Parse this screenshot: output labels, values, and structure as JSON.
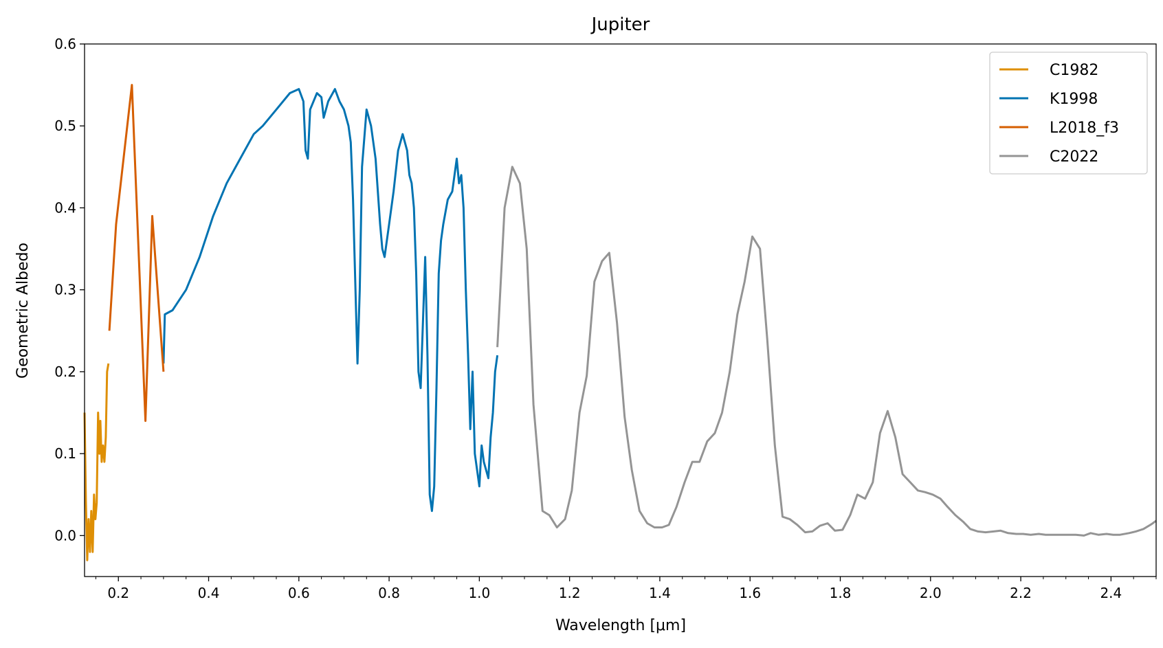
{
  "chart_data": {
    "type": "line",
    "title": "Jupiter",
    "xlabel": "Wavelength [μm]",
    "ylabel": "Geometric Albedo",
    "xlim": [
      0.125,
      2.5
    ],
    "ylim": [
      -0.05,
      0.6
    ],
    "xticks": [
      0.2,
      0.4,
      0.6,
      0.8,
      1.0,
      1.2,
      1.4,
      1.6,
      1.8,
      2.0,
      2.2,
      2.4
    ],
    "xtick_labels": [
      "0.2",
      "0.4",
      "0.6",
      "0.8",
      "1.0",
      "1.2",
      "1.4",
      "1.6",
      "1.8",
      "2.0",
      "2.2",
      "2.4"
    ],
    "yticks": [
      0.0,
      0.1,
      0.2,
      0.3,
      0.4,
      0.5,
      0.6
    ],
    "ytick_labels": [
      "0.0",
      "0.1",
      "0.2",
      "0.3",
      "0.4",
      "0.5",
      "0.6"
    ],
    "grid": false,
    "legend_position": "top-right",
    "series": [
      {
        "name": "C1982",
        "color": "#de8f05",
        "points": [
          [
            0.125,
            0.15
          ],
          [
            0.128,
            0.04
          ],
          [
            0.131,
            -0.03
          ],
          [
            0.134,
            0.02
          ],
          [
            0.137,
            -0.02
          ],
          [
            0.14,
            0.03
          ],
          [
            0.143,
            -0.02
          ],
          [
            0.146,
            0.05
          ],
          [
            0.149,
            0.02
          ],
          [
            0.152,
            0.04
          ],
          [
            0.155,
            0.15
          ],
          [
            0.158,
            0.1
          ],
          [
            0.16,
            0.14
          ],
          [
            0.163,
            0.09
          ],
          [
            0.166,
            0.11
          ],
          [
            0.169,
            0.09
          ],
          [
            0.172,
            0.12
          ],
          [
            0.175,
            0.2
          ],
          [
            0.178,
            0.21
          ]
        ]
      },
      {
        "name": "K1998",
        "color": "#0173b2",
        "points": [
          [
            0.3,
            0.21
          ],
          [
            0.303,
            0.27
          ],
          [
            0.32,
            0.275
          ],
          [
            0.35,
            0.3
          ],
          [
            0.38,
            0.34
          ],
          [
            0.41,
            0.39
          ],
          [
            0.44,
            0.43
          ],
          [
            0.47,
            0.46
          ],
          [
            0.5,
            0.49
          ],
          [
            0.52,
            0.5
          ],
          [
            0.55,
            0.52
          ],
          [
            0.58,
            0.54
          ],
          [
            0.6,
            0.545
          ],
          [
            0.61,
            0.53
          ],
          [
            0.615,
            0.47
          ],
          [
            0.62,
            0.46
          ],
          [
            0.625,
            0.52
          ],
          [
            0.64,
            0.54
          ],
          [
            0.65,
            0.535
          ],
          [
            0.655,
            0.51
          ],
          [
            0.665,
            0.53
          ],
          [
            0.68,
            0.545
          ],
          [
            0.69,
            0.53
          ],
          [
            0.7,
            0.52
          ],
          [
            0.71,
            0.5
          ],
          [
            0.715,
            0.48
          ],
          [
            0.72,
            0.41
          ],
          [
            0.73,
            0.21
          ],
          [
            0.735,
            0.3
          ],
          [
            0.74,
            0.45
          ],
          [
            0.75,
            0.52
          ],
          [
            0.76,
            0.5
          ],
          [
            0.77,
            0.46
          ],
          [
            0.78,
            0.38
          ],
          [
            0.785,
            0.35
          ],
          [
            0.79,
            0.34
          ],
          [
            0.8,
            0.38
          ],
          [
            0.81,
            0.42
          ],
          [
            0.82,
            0.47
          ],
          [
            0.83,
            0.49
          ],
          [
            0.84,
            0.47
          ],
          [
            0.845,
            0.44
          ],
          [
            0.85,
            0.43
          ],
          [
            0.855,
            0.4
          ],
          [
            0.86,
            0.32
          ],
          [
            0.865,
            0.2
          ],
          [
            0.87,
            0.18
          ],
          [
            0.875,
            0.26
          ],
          [
            0.88,
            0.34
          ],
          [
            0.885,
            0.22
          ],
          [
            0.89,
            0.05
          ],
          [
            0.895,
            0.03
          ],
          [
            0.9,
            0.06
          ],
          [
            0.905,
            0.18
          ],
          [
            0.91,
            0.32
          ],
          [
            0.915,
            0.36
          ],
          [
            0.92,
            0.38
          ],
          [
            0.93,
            0.41
          ],
          [
            0.94,
            0.42
          ],
          [
            0.95,
            0.46
          ],
          [
            0.955,
            0.43
          ],
          [
            0.96,
            0.44
          ],
          [
            0.965,
            0.4
          ],
          [
            0.97,
            0.3
          ],
          [
            0.975,
            0.22
          ],
          [
            0.98,
            0.13
          ],
          [
            0.985,
            0.2
          ],
          [
            0.99,
            0.1
          ],
          [
            1.0,
            0.06
          ],
          [
            1.005,
            0.11
          ],
          [
            1.01,
            0.09
          ],
          [
            1.02,
            0.07
          ],
          [
            1.025,
            0.12
          ],
          [
            1.03,
            0.15
          ],
          [
            1.035,
            0.2
          ],
          [
            1.04,
            0.22
          ]
        ]
      },
      {
        "name": "L2018_f3",
        "color": "#d55e00",
        "points": [
          [
            0.18,
            0.25
          ],
          [
            0.195,
            0.38
          ],
          [
            0.23,
            0.55
          ],
          [
            0.26,
            0.14
          ],
          [
            0.275,
            0.39
          ],
          [
            0.3,
            0.2
          ]
        ]
      },
      {
        "name": "C2022",
        "color": "#949494",
        "points": [
          [
            1.04,
            0.23
          ],
          [
            1.056,
            0.4
          ],
          [
            1.073,
            0.45
          ],
          [
            1.09,
            0.43
          ],
          [
            1.105,
            0.35
          ],
          [
            1.12,
            0.16
          ],
          [
            1.14,
            0.03
          ],
          [
            1.155,
            0.025
          ],
          [
            1.172,
            0.01
          ],
          [
            1.19,
            0.02
          ],
          [
            1.205,
            0.055
          ],
          [
            1.222,
            0.15
          ],
          [
            1.238,
            0.195
          ],
          [
            1.255,
            0.31
          ],
          [
            1.272,
            0.335
          ],
          [
            1.288,
            0.345
          ],
          [
            1.305,
            0.26
          ],
          [
            1.322,
            0.145
          ],
          [
            1.338,
            0.08
          ],
          [
            1.355,
            0.03
          ],
          [
            1.372,
            0.015
          ],
          [
            1.388,
            0.01
          ],
          [
            1.405,
            0.01
          ],
          [
            1.42,
            0.013
          ],
          [
            1.437,
            0.035
          ],
          [
            1.455,
            0.065
          ],
          [
            1.472,
            0.09
          ],
          [
            1.488,
            0.09
          ],
          [
            1.505,
            0.115
          ],
          [
            1.522,
            0.125
          ],
          [
            1.538,
            0.15
          ],
          [
            1.555,
            0.2
          ],
          [
            1.572,
            0.27
          ],
          [
            1.588,
            0.31
          ],
          [
            1.605,
            0.365
          ],
          [
            1.622,
            0.35
          ],
          [
            1.638,
            0.24
          ],
          [
            1.655,
            0.11
          ],
          [
            1.672,
            0.023
          ],
          [
            1.688,
            0.02
          ],
          [
            1.705,
            0.013
          ],
          [
            1.722,
            0.004
          ],
          [
            1.738,
            0.005
          ],
          [
            1.755,
            0.012
          ],
          [
            1.772,
            0.015
          ],
          [
            1.788,
            0.006
          ],
          [
            1.805,
            0.007
          ],
          [
            1.822,
            0.025
          ],
          [
            1.838,
            0.05
          ],
          [
            1.855,
            0.045
          ],
          [
            1.872,
            0.065
          ],
          [
            1.888,
            0.125
          ],
          [
            1.905,
            0.152
          ],
          [
            1.922,
            0.12
          ],
          [
            1.938,
            0.075
          ],
          [
            1.955,
            0.065
          ],
          [
            1.972,
            0.055
          ],
          [
            1.988,
            0.053
          ],
          [
            2.005,
            0.05
          ],
          [
            2.022,
            0.045
          ],
          [
            2.038,
            0.035
          ],
          [
            2.055,
            0.025
          ],
          [
            2.072,
            0.017
          ],
          [
            2.088,
            0.008
          ],
          [
            2.105,
            0.005
          ],
          [
            2.122,
            0.004
          ],
          [
            2.14,
            0.005
          ],
          [
            2.155,
            0.006
          ],
          [
            2.172,
            0.003
          ],
          [
            2.19,
            0.002
          ],
          [
            2.205,
            0.002
          ],
          [
            2.222,
            0.001
          ],
          [
            2.24,
            0.002
          ],
          [
            2.255,
            0.001
          ],
          [
            2.272,
            0.001
          ],
          [
            2.29,
            0.001
          ],
          [
            2.305,
            0.001
          ],
          [
            2.322,
            0.001
          ],
          [
            2.34,
            0.0
          ],
          [
            2.355,
            0.003
          ],
          [
            2.372,
            0.001
          ],
          [
            2.39,
            0.002
          ],
          [
            2.405,
            0.001
          ],
          [
            2.42,
            0.001
          ],
          [
            2.44,
            0.003
          ],
          [
            2.455,
            0.005
          ],
          [
            2.472,
            0.008
          ],
          [
            2.49,
            0.014
          ],
          [
            2.5,
            0.018
          ]
        ]
      }
    ]
  }
}
